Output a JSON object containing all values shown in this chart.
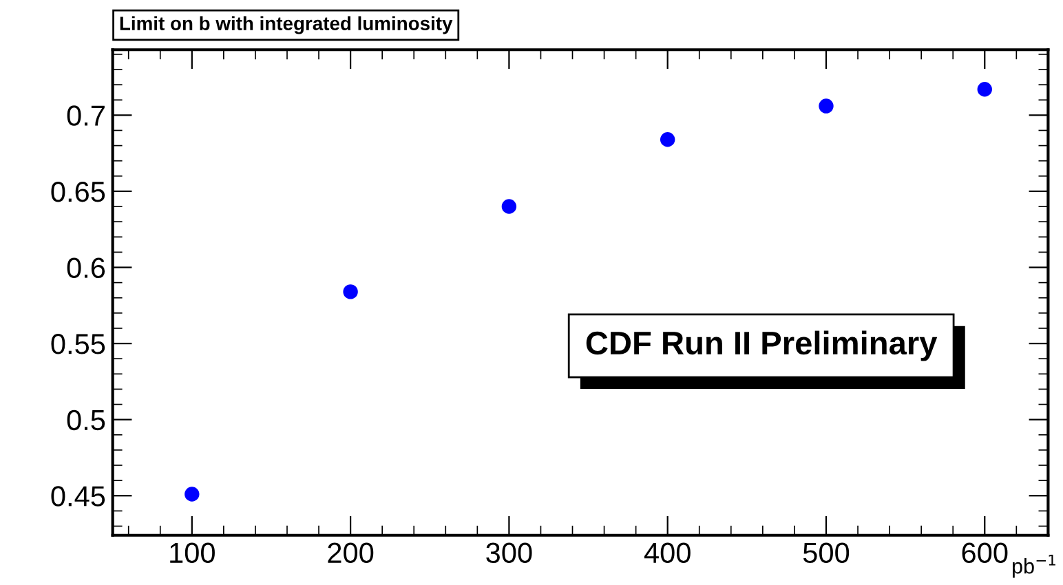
{
  "chart_data": {
    "type": "scatter",
    "title": "Limit on b with integrated luminosity",
    "xlabel": "pb$^{−1}$",
    "x": [
      100,
      200,
      300,
      400,
      500,
      600
    ],
    "series": [
      {
        "color": "#0000ff",
        "values": [
          0.451,
          0.584,
          0.64,
          0.684,
          0.706,
          0.717
        ]
      }
    ],
    "xlim": [
      50,
      640
    ],
    "xticks": [
      100,
      200,
      300,
      400,
      500,
      600
    ],
    "ylim": [
      0.424,
      0.743
    ],
    "yticks": [
      0.45,
      0.5,
      0.55,
      0.6,
      0.65,
      0.7
    ],
    "marker": "circle",
    "grid": false,
    "legend": false,
    "annotations": [
      "CDF Run II Preliminary"
    ]
  }
}
